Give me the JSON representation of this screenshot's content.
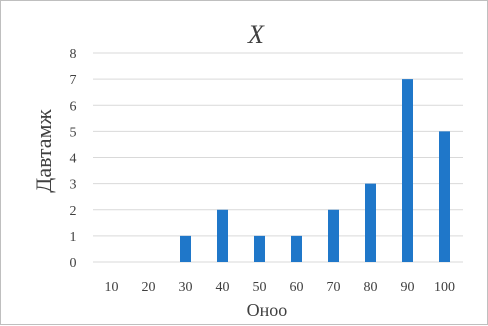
{
  "chart_data": {
    "type": "bar",
    "title": "X",
    "xlabel": "Оноо",
    "ylabel": "Давтамж",
    "categories": [
      "10",
      "20",
      "30",
      "40",
      "50",
      "60",
      "70",
      "80",
      "90",
      "100"
    ],
    "values": [
      0,
      0,
      1,
      2,
      1,
      1,
      2,
      3,
      7,
      5
    ],
    "ylim": [
      0,
      8
    ],
    "yticks": [
      "0",
      "1",
      "2",
      "3",
      "4",
      "5",
      "6",
      "7",
      "8"
    ],
    "grid": true,
    "bar_color": "#1f77c9",
    "grid_color": "#d9d9d9"
  }
}
